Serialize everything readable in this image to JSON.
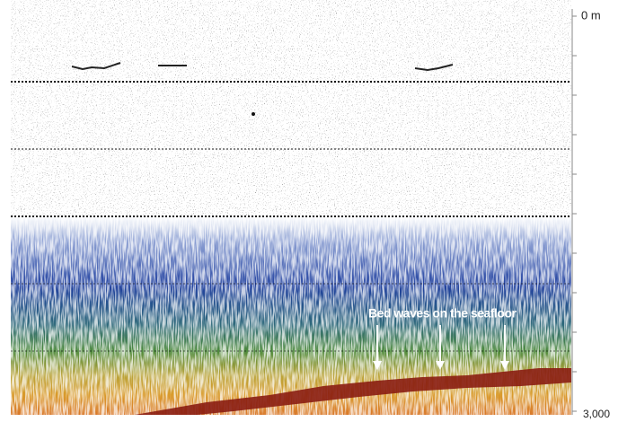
{
  "axis": {
    "top_label": "0 m",
    "bottom_label": "3,000"
  },
  "annotation": {
    "text": "Bed waves on the seafloor"
  }
}
